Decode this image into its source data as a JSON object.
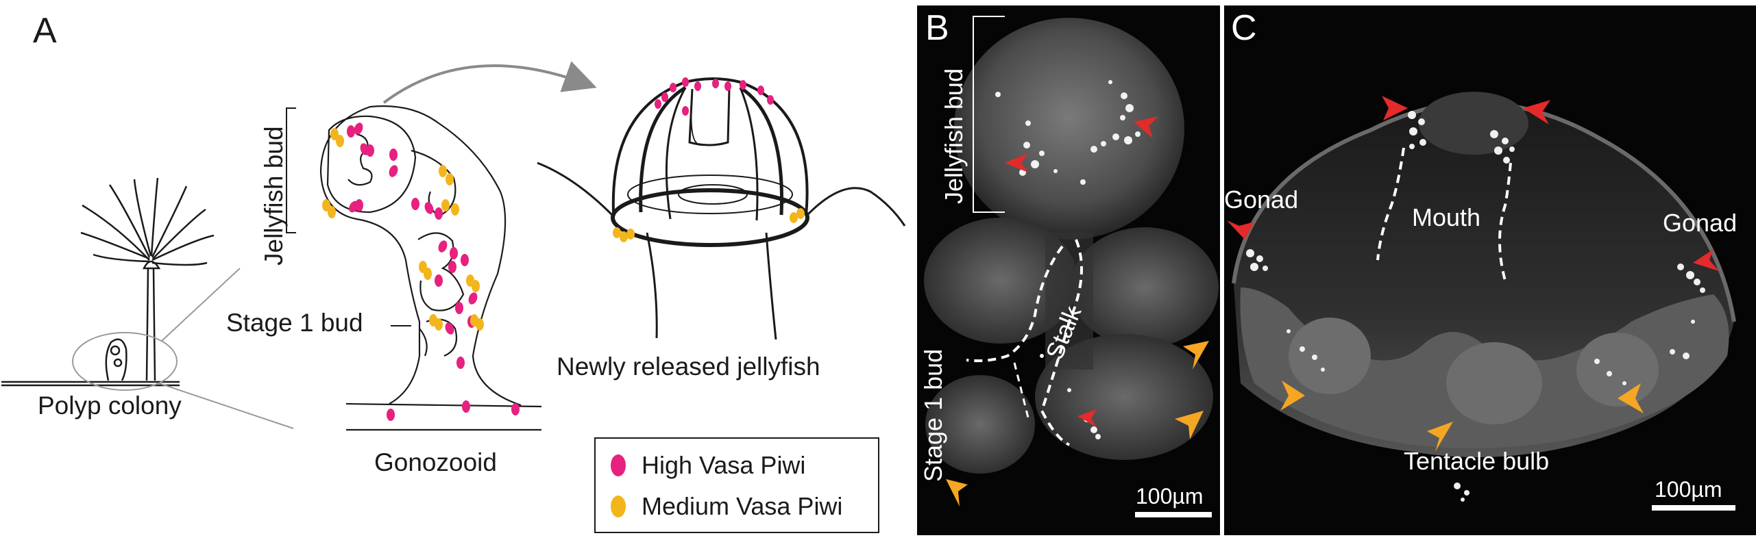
{
  "panels": {
    "a": {
      "letter": "A",
      "polyp_colony_label": "Polyp colony",
      "jellyfish_bud_label": "Jellyfish bud",
      "stage1_bud_label": "Stage 1 bud",
      "gonozooid_label": "Gonozooid",
      "released_label": "Newly released jellyfish",
      "legend": [
        {
          "label": "High Vasa Piwi",
          "color": "#e6217f"
        },
        {
          "label": "Medium Vasa Piwi",
          "color": "#f3b51c"
        }
      ]
    },
    "b": {
      "letter": "B",
      "jellyfish_bud_label": "Jellyfish bud",
      "stage1_bud_label": "Stage 1 bud",
      "stalk_label": "Stalk",
      "scale_label": "100µm"
    },
    "c": {
      "letter": "C",
      "gonad_left_label": "Gonad",
      "gonad_right_label": "Gonad",
      "mouth_label": "Mouth",
      "tentacle_bulb_label": "Tentacle bulb",
      "scale_label": "100µm"
    }
  },
  "colors": {
    "high": "#e6217f",
    "medium": "#f3b51c",
    "arrow_red": "#e42a2a",
    "arrow_orange": "#f5a623",
    "micrograph_bg": "#050505"
  }
}
